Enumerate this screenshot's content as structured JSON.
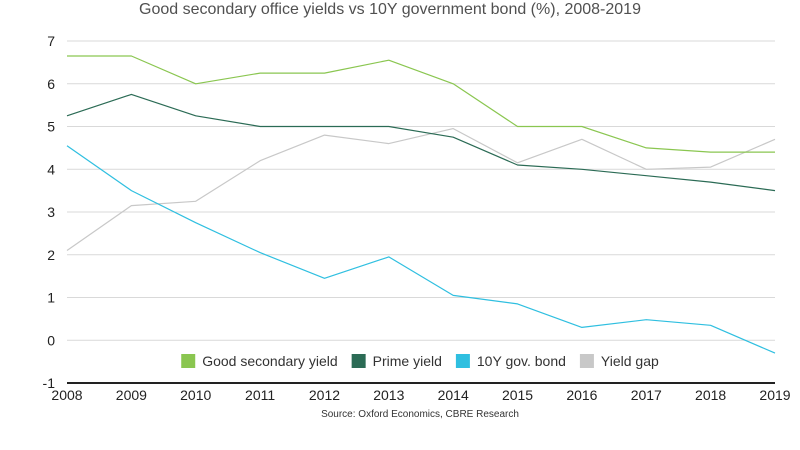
{
  "chart_data": {
    "type": "line",
    "title": "Good secondary office yields vs 10Y government bond (%), 2008-2019",
    "source": "Source: Oxford Economics, CBRE Research",
    "x": [
      "2008",
      "2009",
      "2010",
      "2011",
      "2012",
      "2013",
      "2014",
      "2015",
      "2016",
      "2017",
      "2018",
      "2019"
    ],
    "ylim": [
      -1,
      7
    ],
    "yticks": [
      "7",
      "6",
      "5",
      "4",
      "3",
      "2",
      "1",
      "0",
      "-1"
    ],
    "grid": true,
    "legend_position": "bottom-center",
    "series": [
      {
        "name": "Good secondary yield",
        "color": "#8ac650",
        "values": [
          6.65,
          6.65,
          6.0,
          6.25,
          6.25,
          6.55,
          6.0,
          5.0,
          5.0,
          4.5,
          4.4,
          4.4
        ]
      },
      {
        "name": "Prime yield",
        "color": "#2b6b55",
        "values": [
          5.25,
          5.75,
          5.25,
          5.0,
          5.0,
          5.0,
          4.75,
          4.1,
          4.0,
          3.85,
          3.7,
          3.5
        ]
      },
      {
        "name": "10Y gov. bond",
        "color": "#2fbfe0",
        "values": [
          4.55,
          3.5,
          2.75,
          2.05,
          1.45,
          1.95,
          1.05,
          0.85,
          0.3,
          0.48,
          0.35,
          -0.3
        ]
      },
      {
        "name": "Yield gap",
        "color": "#c8c8c8",
        "values": [
          2.1,
          3.15,
          3.25,
          4.2,
          4.8,
          4.6,
          4.95,
          4.15,
          4.7,
          4.0,
          4.05,
          4.7
        ]
      }
    ]
  }
}
